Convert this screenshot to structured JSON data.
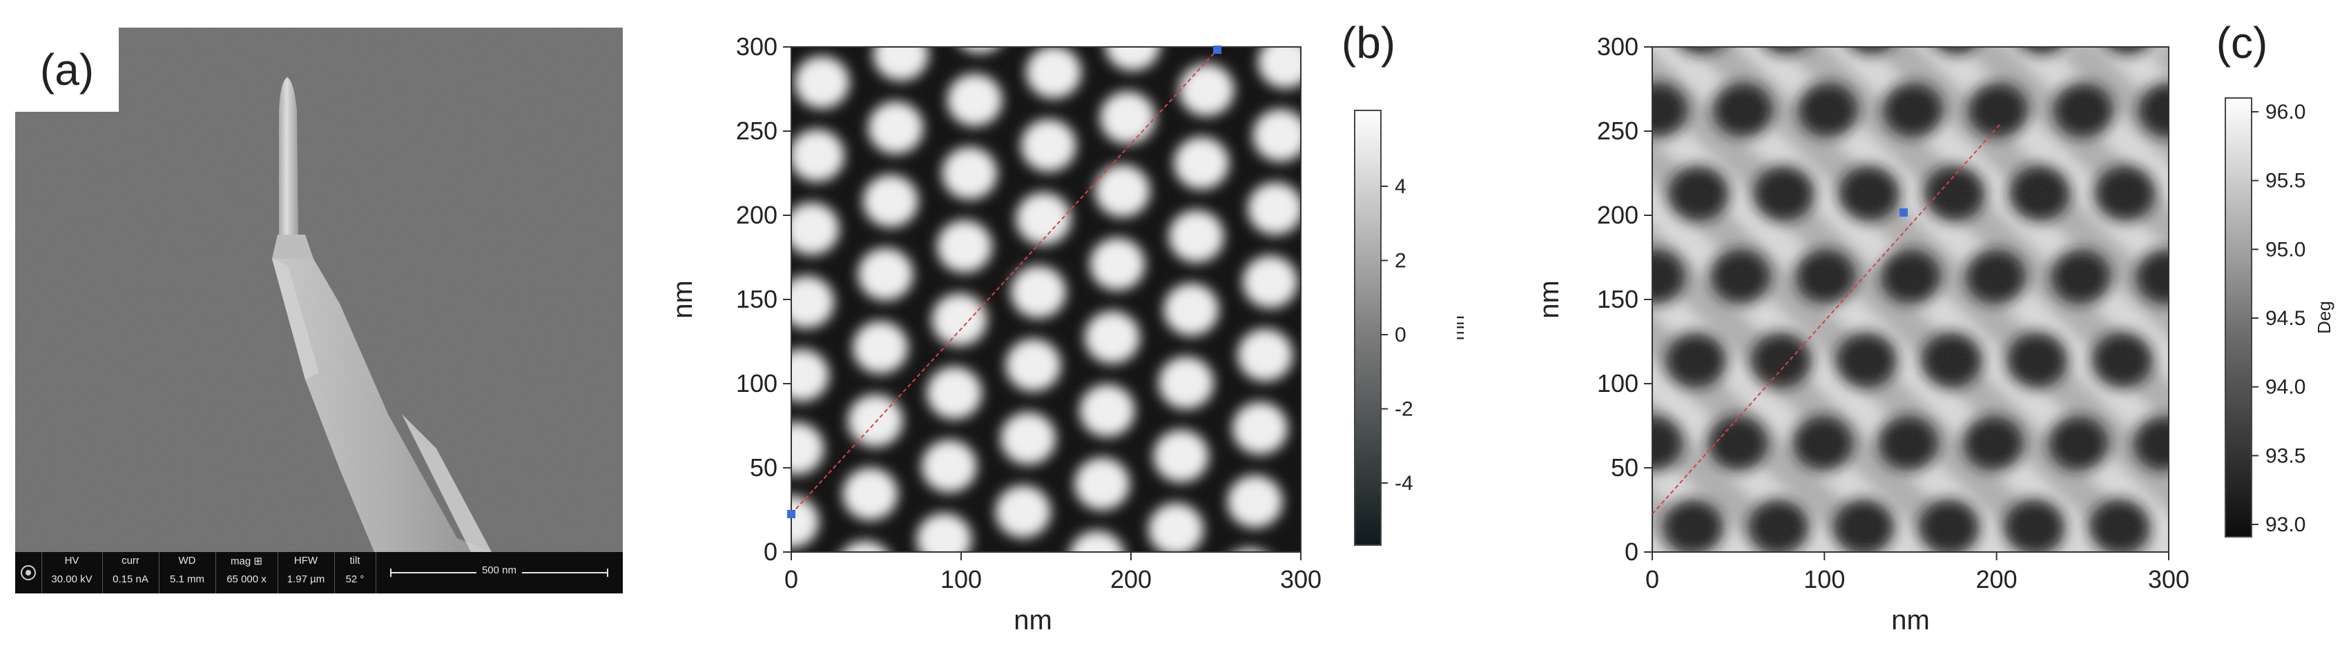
{
  "panels": {
    "a": {
      "label": "(a)",
      "databar": {
        "fields": [
          {
            "name": "HV",
            "value": "30.00 kV"
          },
          {
            "name": "curr",
            "value": "0.15 nA"
          },
          {
            "name": "WD",
            "value": "5.1 mm"
          },
          {
            "name": "mag ⊞",
            "value": "65 000 x"
          },
          {
            "name": "HFW",
            "value": "1.97 µm"
          },
          {
            "name": "tilt",
            "value": "52 °"
          }
        ],
        "scalebar": "500 nm"
      }
    },
    "b": {
      "label": "(b)",
      "x_axis_label": "nm",
      "y_axis_label": "nm",
      "x_ticks": [
        "0",
        "100",
        "200",
        "300"
      ],
      "y_ticks": [
        "0",
        "50",
        "100",
        "150",
        "200",
        "250",
        "300"
      ],
      "colorbar_ticks": [
        "4",
        "2",
        "0",
        "-2",
        "-4"
      ],
      "colorbar_unit": "nm"
    },
    "c": {
      "label": "(c)",
      "x_axis_label": "nm",
      "y_axis_label": "nm",
      "x_ticks": [
        "0",
        "100",
        "200",
        "300"
      ],
      "y_ticks": [
        "0",
        "50",
        "100",
        "150",
        "200",
        "250",
        "300"
      ],
      "colorbar_ticks": [
        "96.0",
        "95.5",
        "95.0",
        "94.5",
        "94.0",
        "93.5",
        "93.0"
      ],
      "colorbar_unit": "Deg"
    }
  },
  "colors": {
    "sem_background": "#6f6f6f",
    "profile_line": "#d94040",
    "profile_marker": "#3a6fd8"
  }
}
